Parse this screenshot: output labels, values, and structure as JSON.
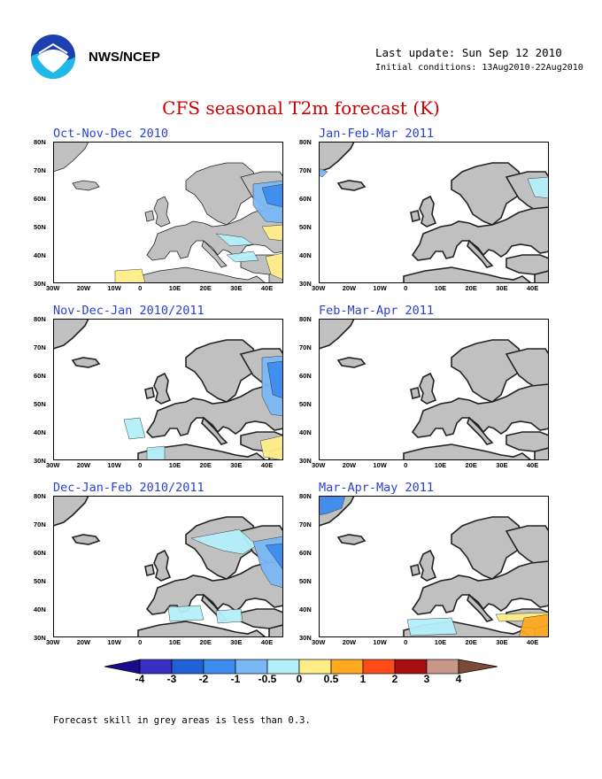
{
  "header": {
    "agency": "NWS/NCEP",
    "last_update": "Last update: Sun Sep 12 2010",
    "initial_conditions": "Initial conditions: 13Aug2010-22Aug2010"
  },
  "title": "CFS seasonal T2m forecast (K)",
  "axes": {
    "lat_labels": [
      "80N",
      "70N",
      "60N",
      "50N",
      "40N",
      "30N"
    ],
    "lon_labels": [
      "30W",
      "20W",
      "10W",
      "0",
      "10E",
      "20E",
      "30E",
      "40E"
    ]
  },
  "panels": [
    {
      "id": "ond",
      "title": "Oct-Nov-Dec 2010"
    },
    {
      "id": "jfm",
      "title": "Jan-Feb-Mar 2011"
    },
    {
      "id": "ndj",
      "title": "Nov-Dec-Jan 2010/2011"
    },
    {
      "id": "fma",
      "title": "Feb-Mar-Apr 2011"
    },
    {
      "id": "djf",
      "title": "Dec-Jan-Feb 2010/2011"
    },
    {
      "id": "mam",
      "title": "Mar-Apr-May 2011"
    }
  ],
  "colorbar": {
    "labels": [
      "-4",
      "-3",
      "-2",
      "-1",
      "-0.5",
      "0",
      "0.5",
      "1",
      "2",
      "3",
      "4"
    ],
    "colors": [
      "#1a0a8c",
      "#3a2fc4",
      "#1f62d8",
      "#3d8cf0",
      "#7ab8f5",
      "#b4f0fa",
      "#ffee88",
      "#ffa820",
      "#ff4a1a",
      "#a80e0e",
      "#c8968a",
      "#7a4a3a"
    ]
  },
  "colors": {
    "grey_area": "#c0c0c0",
    "title": "#cc0000",
    "panel_title": "#2a3fcf"
  },
  "footnote": "Forecast skill in grey areas is less than 0.3."
}
